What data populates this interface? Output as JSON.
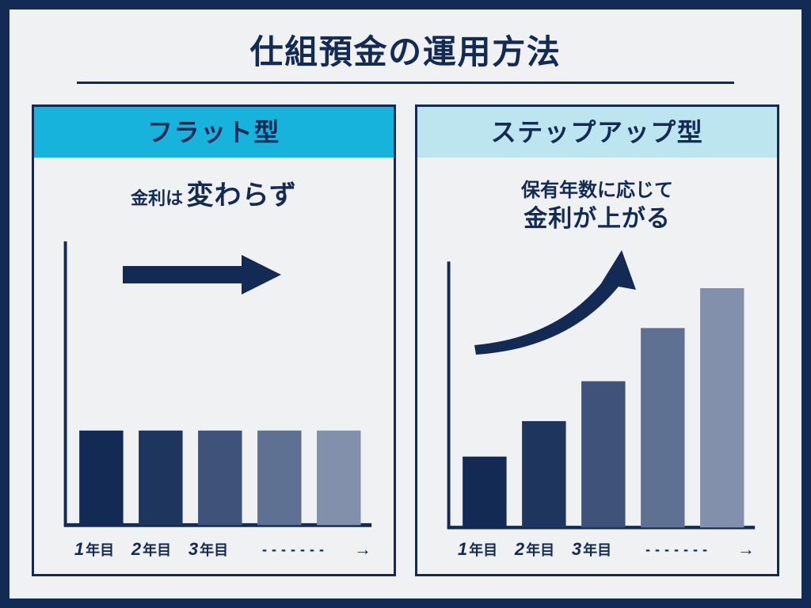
{
  "colors": {
    "navy": "#122a54",
    "bg": "#f0f1f2",
    "cyan_bright": "#18b3dd",
    "cyan_pale": "#bde5ef",
    "axis": "#122a54"
  },
  "title": "仕組預金の運用方法",
  "xaxis": {
    "labels": [
      "1年目",
      "2年目",
      "3年目"
    ],
    "continuation_dots": "‐‐‐‐‐‐‐"
  },
  "left": {
    "header_bg": "#18b3dd",
    "header_text": "フラット型",
    "desc_small": "金利は",
    "desc_big": "変わらず",
    "chart": {
      "type": "bar",
      "bar_colors": [
        "#132a55",
        "#1e365e",
        "#3e527a",
        "#5f7193",
        "#8390ab"
      ],
      "values": [
        100,
        100,
        100,
        100,
        100
      ],
      "y_max": 300,
      "bar_width_ratio": 0.74
    },
    "arrow": {
      "kind": "straight"
    }
  },
  "right": {
    "header_bg": "#bde5ef",
    "header_text": "ステップアップ型",
    "desc_line1": "保有年数に応じて",
    "desc_line2": "金利が上がる",
    "chart": {
      "type": "bar",
      "bar_colors": [
        "#132a55",
        "#1e365e",
        "#3e527a",
        "#5f7193",
        "#8390ab"
      ],
      "values": [
        80,
        120,
        165,
        225,
        270
      ],
      "y_max": 300,
      "bar_width_ratio": 0.74
    },
    "arrow": {
      "kind": "curved-up"
    }
  }
}
